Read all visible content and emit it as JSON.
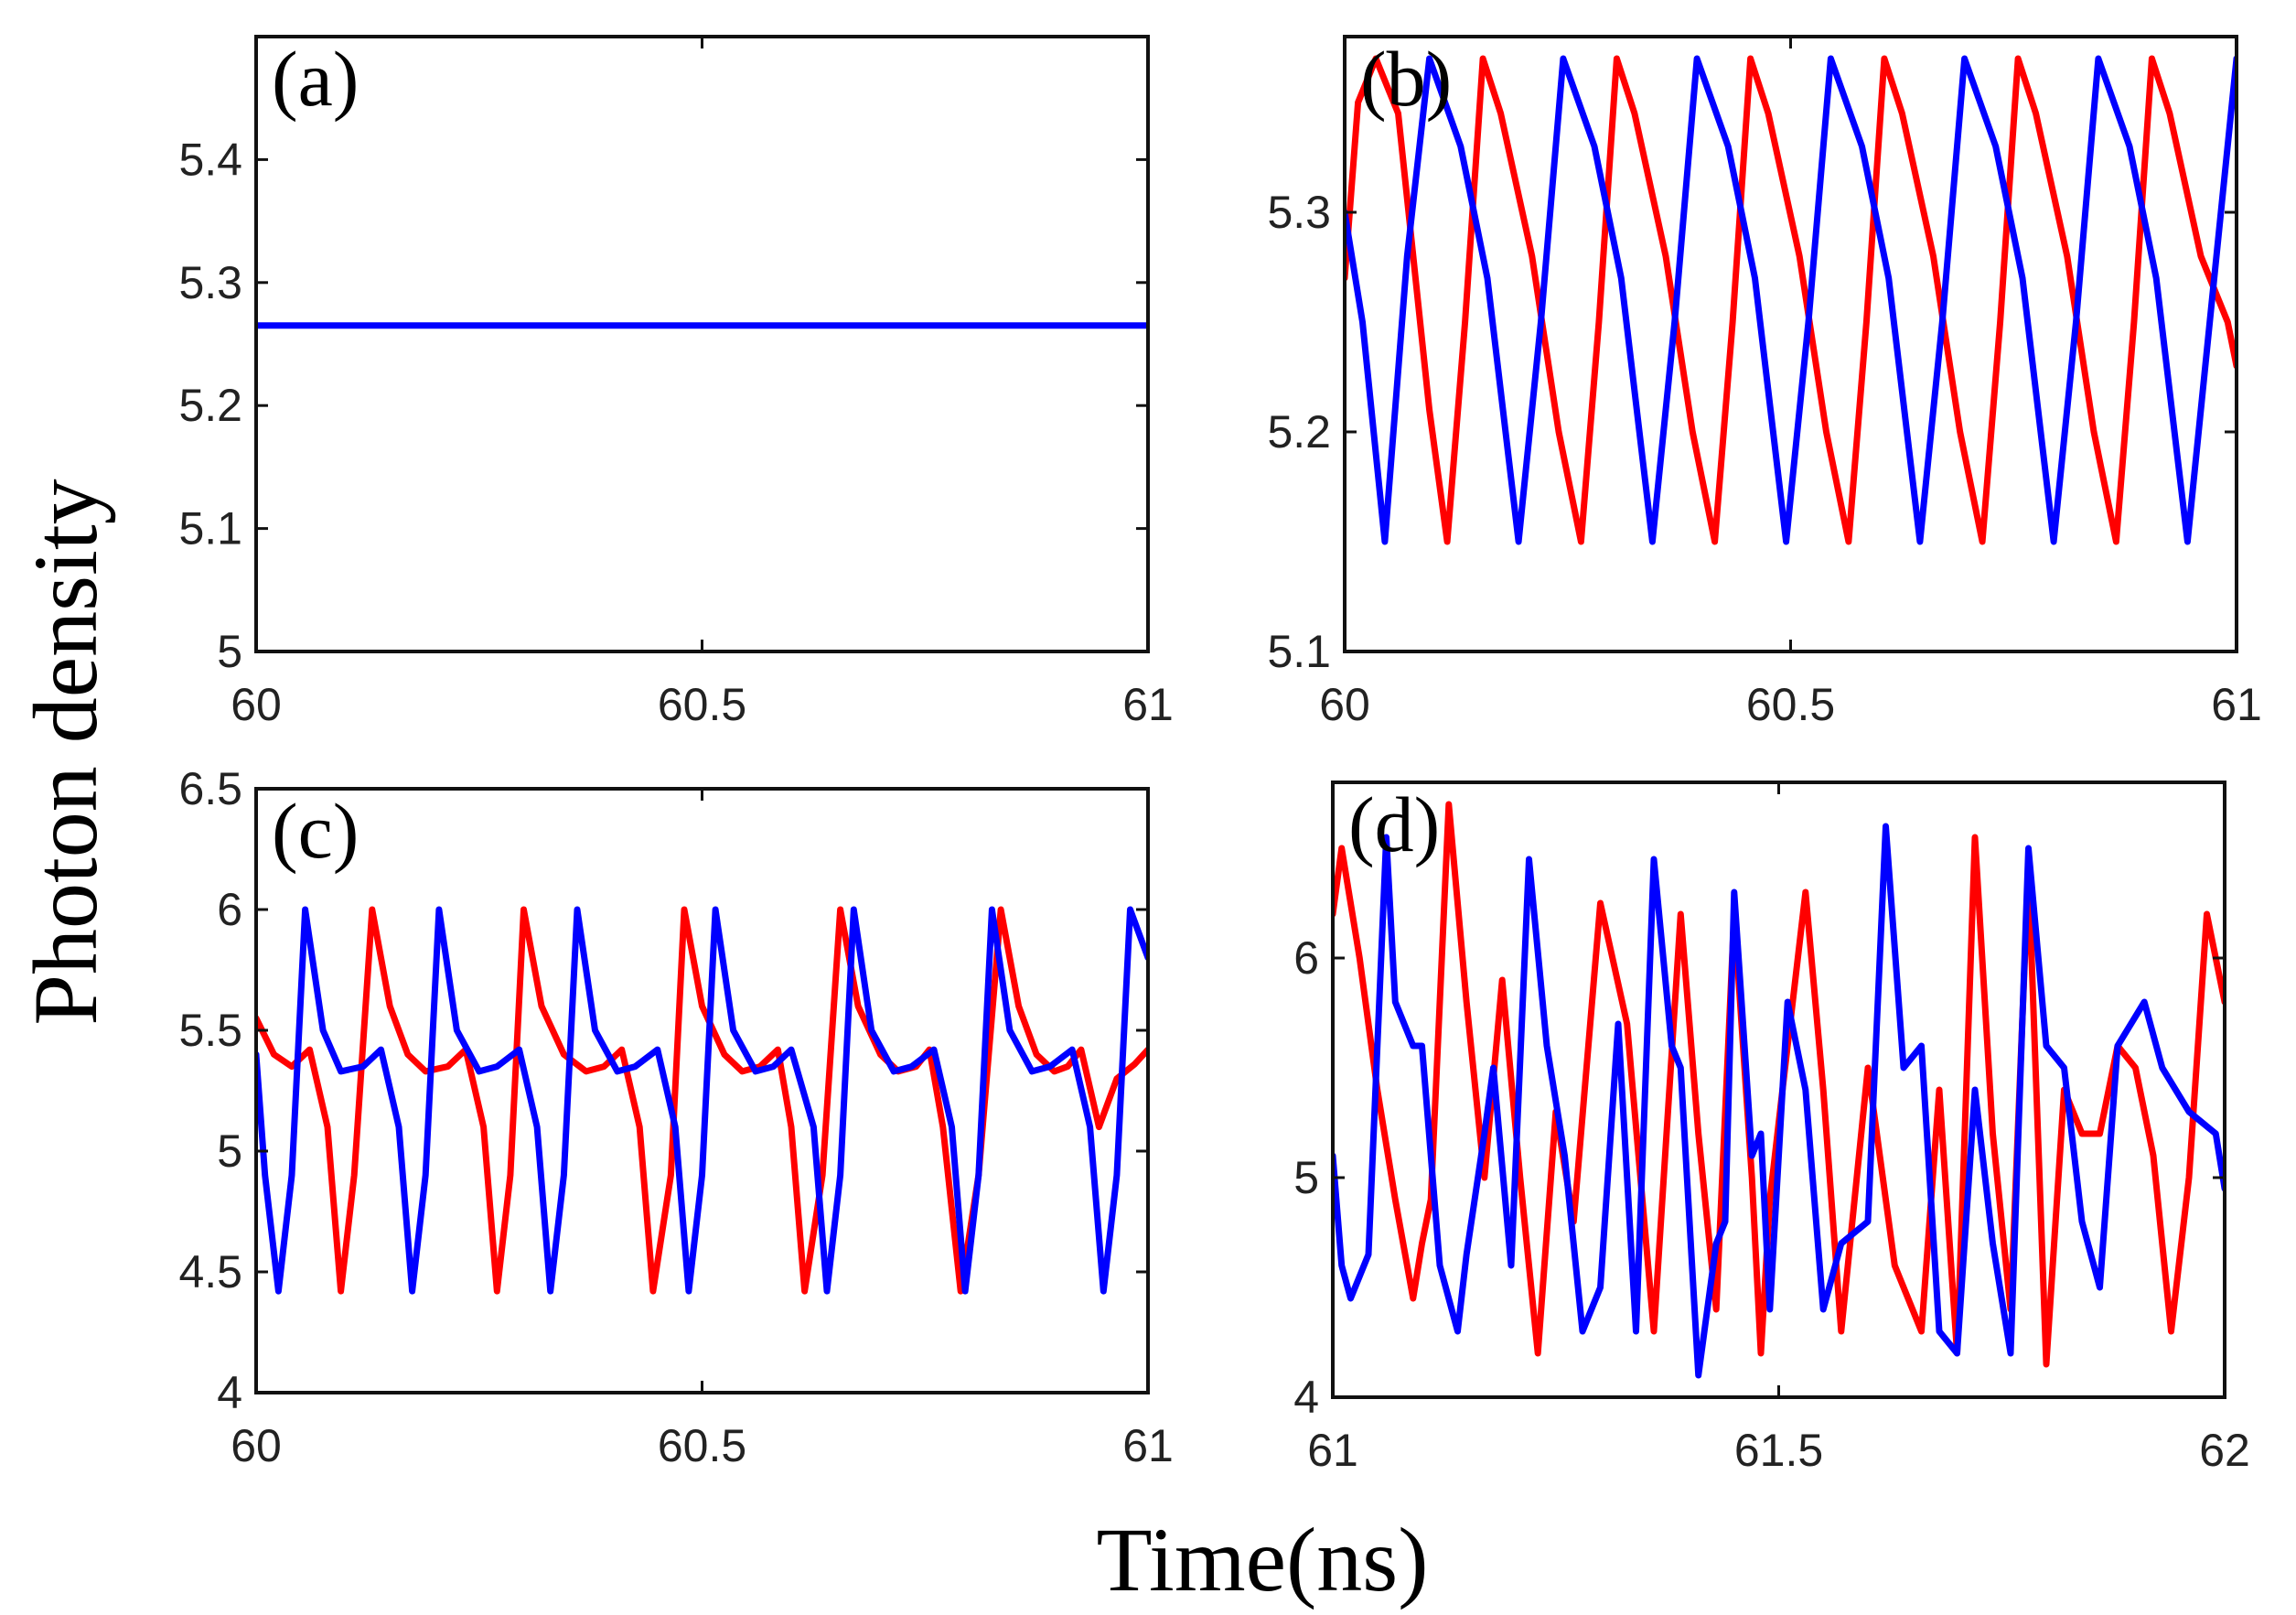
{
  "figure": {
    "xlabel": "Time(ns)",
    "ylabel": "Photon density",
    "colors": {
      "series_1": "#ff0000",
      "series_2": "#0000ff",
      "axes": "#111111"
    }
  },
  "chart_data": [
    {
      "id": "a",
      "panel_label": "(a)",
      "type": "line",
      "xlim": [
        60,
        61
      ],
      "ylim": [
        5,
        5.5
      ],
      "xticks": [
        60,
        60.5,
        61
      ],
      "xtick_labels": [
        "60",
        "60.5",
        "61"
      ],
      "yticks": [
        5,
        5.1,
        5.2,
        5.3,
        5.4
      ],
      "ytick_labels": [
        "5",
        "5.1",
        "5.2",
        "5.3",
        "5.4"
      ],
      "series": [
        {
          "name": "series_2",
          "color": "#0000ff",
          "x": [
            60,
            61
          ],
          "y": [
            5.265,
            5.265
          ]
        }
      ]
    },
    {
      "id": "b",
      "panel_label": "(b)",
      "type": "line",
      "xlim": [
        60,
        61
      ],
      "ylim": [
        5.1,
        5.38
      ],
      "xticks": [
        60,
        60.5,
        61
      ],
      "xtick_labels": [
        "60",
        "60.5",
        "61"
      ],
      "yticks": [
        5.1,
        5.2,
        5.3
      ],
      "ytick_labels": [
        "5.1",
        "5.2",
        "5.3"
      ],
      "series": [
        {
          "name": "series_1",
          "color": "#ff0000",
          "x": [
            60,
            60.015,
            60.035,
            60.06,
            60.095,
            60.115,
            60.135,
            60.155,
            60.175,
            60.21,
            60.24,
            60.265,
            60.285,
            60.305,
            60.325,
            60.36,
            60.39,
            60.415,
            60.435,
            60.455,
            60.475,
            60.51,
            60.54,
            60.565,
            60.585,
            60.605,
            60.625,
            60.66,
            60.69,
            60.715,
            60.735,
            60.755,
            60.775,
            60.81,
            60.84,
            60.865,
            60.885,
            60.905,
            60.925,
            60.96,
            60.99,
            61
          ],
          "y": [
            5.27,
            5.35,
            5.37,
            5.345,
            5.21,
            5.15,
            5.25,
            5.37,
            5.345,
            5.28,
            5.2,
            5.15,
            5.25,
            5.37,
            5.345,
            5.28,
            5.2,
            5.15,
            5.25,
            5.37,
            5.345,
            5.28,
            5.2,
            5.15,
            5.25,
            5.37,
            5.345,
            5.28,
            5.2,
            5.15,
            5.25,
            5.37,
            5.345,
            5.28,
            5.2,
            5.15,
            5.25,
            5.37,
            5.345,
            5.28,
            5.25,
            5.23
          ]
        },
        {
          "name": "series_2",
          "color": "#0000ff",
          "x": [
            60,
            60.02,
            60.045,
            60.07,
            60.095,
            60.13,
            60.16,
            60.195,
            60.22,
            60.245,
            60.28,
            60.31,
            60.345,
            60.37,
            60.395,
            60.43,
            60.46,
            60.495,
            60.52,
            60.545,
            60.58,
            60.61,
            60.645,
            60.67,
            60.695,
            60.73,
            60.76,
            60.795,
            60.82,
            60.845,
            60.88,
            60.91,
            60.945,
            60.97,
            61
          ],
          "y": [
            5.3,
            5.25,
            5.15,
            5.28,
            5.37,
            5.33,
            5.27,
            5.15,
            5.25,
            5.37,
            5.33,
            5.27,
            5.15,
            5.25,
            5.37,
            5.33,
            5.27,
            5.15,
            5.25,
            5.37,
            5.33,
            5.27,
            5.15,
            5.25,
            5.37,
            5.33,
            5.27,
            5.15,
            5.25,
            5.37,
            5.33,
            5.27,
            5.15,
            5.25,
            5.37
          ]
        }
      ]
    },
    {
      "id": "c",
      "panel_label": "(c)",
      "type": "line",
      "xlim": [
        60,
        61
      ],
      "ylim": [
        4,
        6.5
      ],
      "xticks": [
        60,
        60.5,
        61
      ],
      "xtick_labels": [
        "60",
        "60.5",
        "61"
      ],
      "yticks": [
        4,
        4.5,
        5,
        5.5,
        6,
        6.5
      ],
      "ytick_labels": [
        "4",
        "4.5",
        "5",
        "5.5",
        "6",
        "6.5"
      ],
      "series": [
        {
          "name": "series_1",
          "color": "#ff0000",
          "x": [
            60,
            60.02,
            60.04,
            60.06,
            60.08,
            60.095,
            60.11,
            60.13,
            60.15,
            60.17,
            60.19,
            60.215,
            60.235,
            60.255,
            60.27,
            60.285,
            60.3,
            60.32,
            60.345,
            60.37,
            60.39,
            60.41,
            60.43,
            60.445,
            60.465,
            60.48,
            60.5,
            60.525,
            60.545,
            60.565,
            60.585,
            60.6,
            60.615,
            60.635,
            60.655,
            60.675,
            60.7,
            60.72,
            60.74,
            60.755,
            60.77,
            60.79,
            60.81,
            60.835,
            60.855,
            60.875,
            60.895,
            60.91,
            60.925,
            60.945,
            60.965,
            60.985,
            61
          ],
          "y": [
            5.55,
            5.4,
            5.35,
            5.42,
            5.1,
            4.42,
            4.9,
            6.0,
            5.6,
            5.4,
            5.33,
            5.35,
            5.42,
            5.1,
            4.42,
            4.9,
            6.0,
            5.6,
            5.4,
            5.33,
            5.35,
            5.42,
            5.1,
            4.42,
            4.9,
            6.0,
            5.6,
            5.4,
            5.33,
            5.35,
            5.42,
            5.1,
            4.42,
            4.9,
            6.0,
            5.6,
            5.4,
            5.33,
            5.35,
            5.42,
            5.1,
            4.42,
            4.9,
            6.0,
            5.6,
            5.4,
            5.33,
            5.35,
            5.42,
            5.1,
            5.3,
            5.36,
            5.42
          ]
        },
        {
          "name": "series_2",
          "color": "#0000ff",
          "x": [
            60,
            60.01,
            60.025,
            60.04,
            60.055,
            60.075,
            60.095,
            60.12,
            60.14,
            60.16,
            60.175,
            60.19,
            60.205,
            60.225,
            60.25,
            60.27,
            60.295,
            60.315,
            60.33,
            60.345,
            60.36,
            60.38,
            60.405,
            60.425,
            60.45,
            60.47,
            60.485,
            60.5,
            60.515,
            60.535,
            60.56,
            60.58,
            60.6,
            60.625,
            60.64,
            60.655,
            60.67,
            60.69,
            60.715,
            60.735,
            60.76,
            60.78,
            60.795,
            60.81,
            60.825,
            60.845,
            60.87,
            60.89,
            60.915,
            60.935,
            60.95,
            60.965,
            60.98,
            61
          ],
          "y": [
            5.4,
            4.9,
            4.42,
            4.9,
            6.0,
            5.5,
            5.33,
            5.35,
            5.42,
            5.1,
            4.42,
            4.9,
            6.0,
            5.5,
            5.33,
            5.35,
            5.42,
            5.1,
            4.42,
            4.9,
            6.0,
            5.5,
            5.33,
            5.35,
            5.42,
            5.1,
            4.42,
            4.9,
            6.0,
            5.5,
            5.33,
            5.35,
            5.42,
            5.1,
            4.42,
            4.9,
            6.0,
            5.5,
            5.33,
            5.35,
            5.42,
            5.1,
            4.42,
            4.9,
            6.0,
            5.5,
            5.33,
            5.35,
            5.42,
            5.1,
            4.42,
            4.9,
            6.0,
            5.8
          ]
        }
      ]
    },
    {
      "id": "d",
      "panel_label": "(d)",
      "type": "line",
      "xlim": [
        61,
        62
      ],
      "ylim": [
        4,
        6.8
      ],
      "xticks": [
        61,
        61.5,
        62
      ],
      "xtick_labels": [
        "61",
        "61.5",
        "62"
      ],
      "yticks": [
        4,
        5,
        6
      ],
      "ytick_labels": [
        "4",
        "5",
        "6"
      ],
      "series": [
        {
          "name": "series_1",
          "color": "#ff0000",
          "x": [
            61,
            61.01,
            61.03,
            61.05,
            61.07,
            61.09,
            61.1,
            61.11,
            61.13,
            61.15,
            61.17,
            61.19,
            61.21,
            61.23,
            61.25,
            61.27,
            61.3,
            61.33,
            61.36,
            61.39,
            61.41,
            61.43,
            61.45,
            61.47,
            61.48,
            61.49,
            61.51,
            61.53,
            61.55,
            61.57,
            61.6,
            61.63,
            61.66,
            61.68,
            61.7,
            61.72,
            61.74,
            61.76,
            61.78,
            61.8,
            61.82,
            61.84,
            61.86,
            61.88,
            61.9,
            61.92,
            61.94,
            61.96,
            61.98,
            62
          ],
          "y": [
            6.2,
            6.5,
            6.0,
            5.4,
            4.9,
            4.45,
            4.7,
            4.9,
            6.7,
            5.8,
            5.0,
            5.9,
            5.0,
            4.2,
            5.3,
            4.8,
            6.25,
            5.7,
            4.3,
            6.2,
            5.2,
            4.4,
            6.2,
            5.0,
            4.2,
            4.9,
            5.6,
            6.3,
            5.4,
            4.3,
            5.5,
            4.6,
            4.3,
            5.4,
            4.2,
            6.55,
            5.2,
            4.4,
            6.4,
            4.15,
            5.4,
            5.2,
            5.2,
            5.6,
            5.5,
            5.1,
            4.3,
            5.0,
            6.2,
            5.8
          ]
        },
        {
          "name": "series_2",
          "color": "#0000ff",
          "x": [
            61,
            61.01,
            61.02,
            61.04,
            61.06,
            61.07,
            61.09,
            61.1,
            61.12,
            61.14,
            61.15,
            61.17,
            61.18,
            61.2,
            61.22,
            61.24,
            61.26,
            61.28,
            61.3,
            61.32,
            61.34,
            61.36,
            61.38,
            61.39,
            61.41,
            61.43,
            61.44,
            61.45,
            61.47,
            61.48,
            61.49,
            61.51,
            61.53,
            61.55,
            61.57,
            61.6,
            61.62,
            61.64,
            61.66,
            61.68,
            61.7,
            61.72,
            61.74,
            61.76,
            61.78,
            61.8,
            61.82,
            61.84,
            61.86,
            61.88,
            61.91,
            61.93,
            61.96,
            61.99,
            62
          ],
          "y": [
            5.1,
            4.6,
            4.45,
            4.65,
            6.55,
            5.8,
            5.6,
            5.6,
            4.6,
            4.3,
            4.65,
            5.2,
            5.5,
            4.6,
            6.45,
            5.6,
            5.1,
            4.3,
            4.5,
            5.7,
            4.3,
            6.45,
            5.6,
            5.5,
            4.1,
            4.7,
            4.8,
            6.3,
            5.1,
            5.2,
            4.4,
            5.8,
            5.4,
            4.4,
            4.7,
            4.8,
            6.6,
            5.5,
            5.6,
            4.3,
            4.2,
            5.4,
            4.7,
            4.2,
            6.5,
            5.6,
            5.5,
            4.8,
            4.5,
            5.6,
            5.8,
            5.5,
            5.3,
            5.2,
            4.95
          ]
        }
      ]
    }
  ]
}
